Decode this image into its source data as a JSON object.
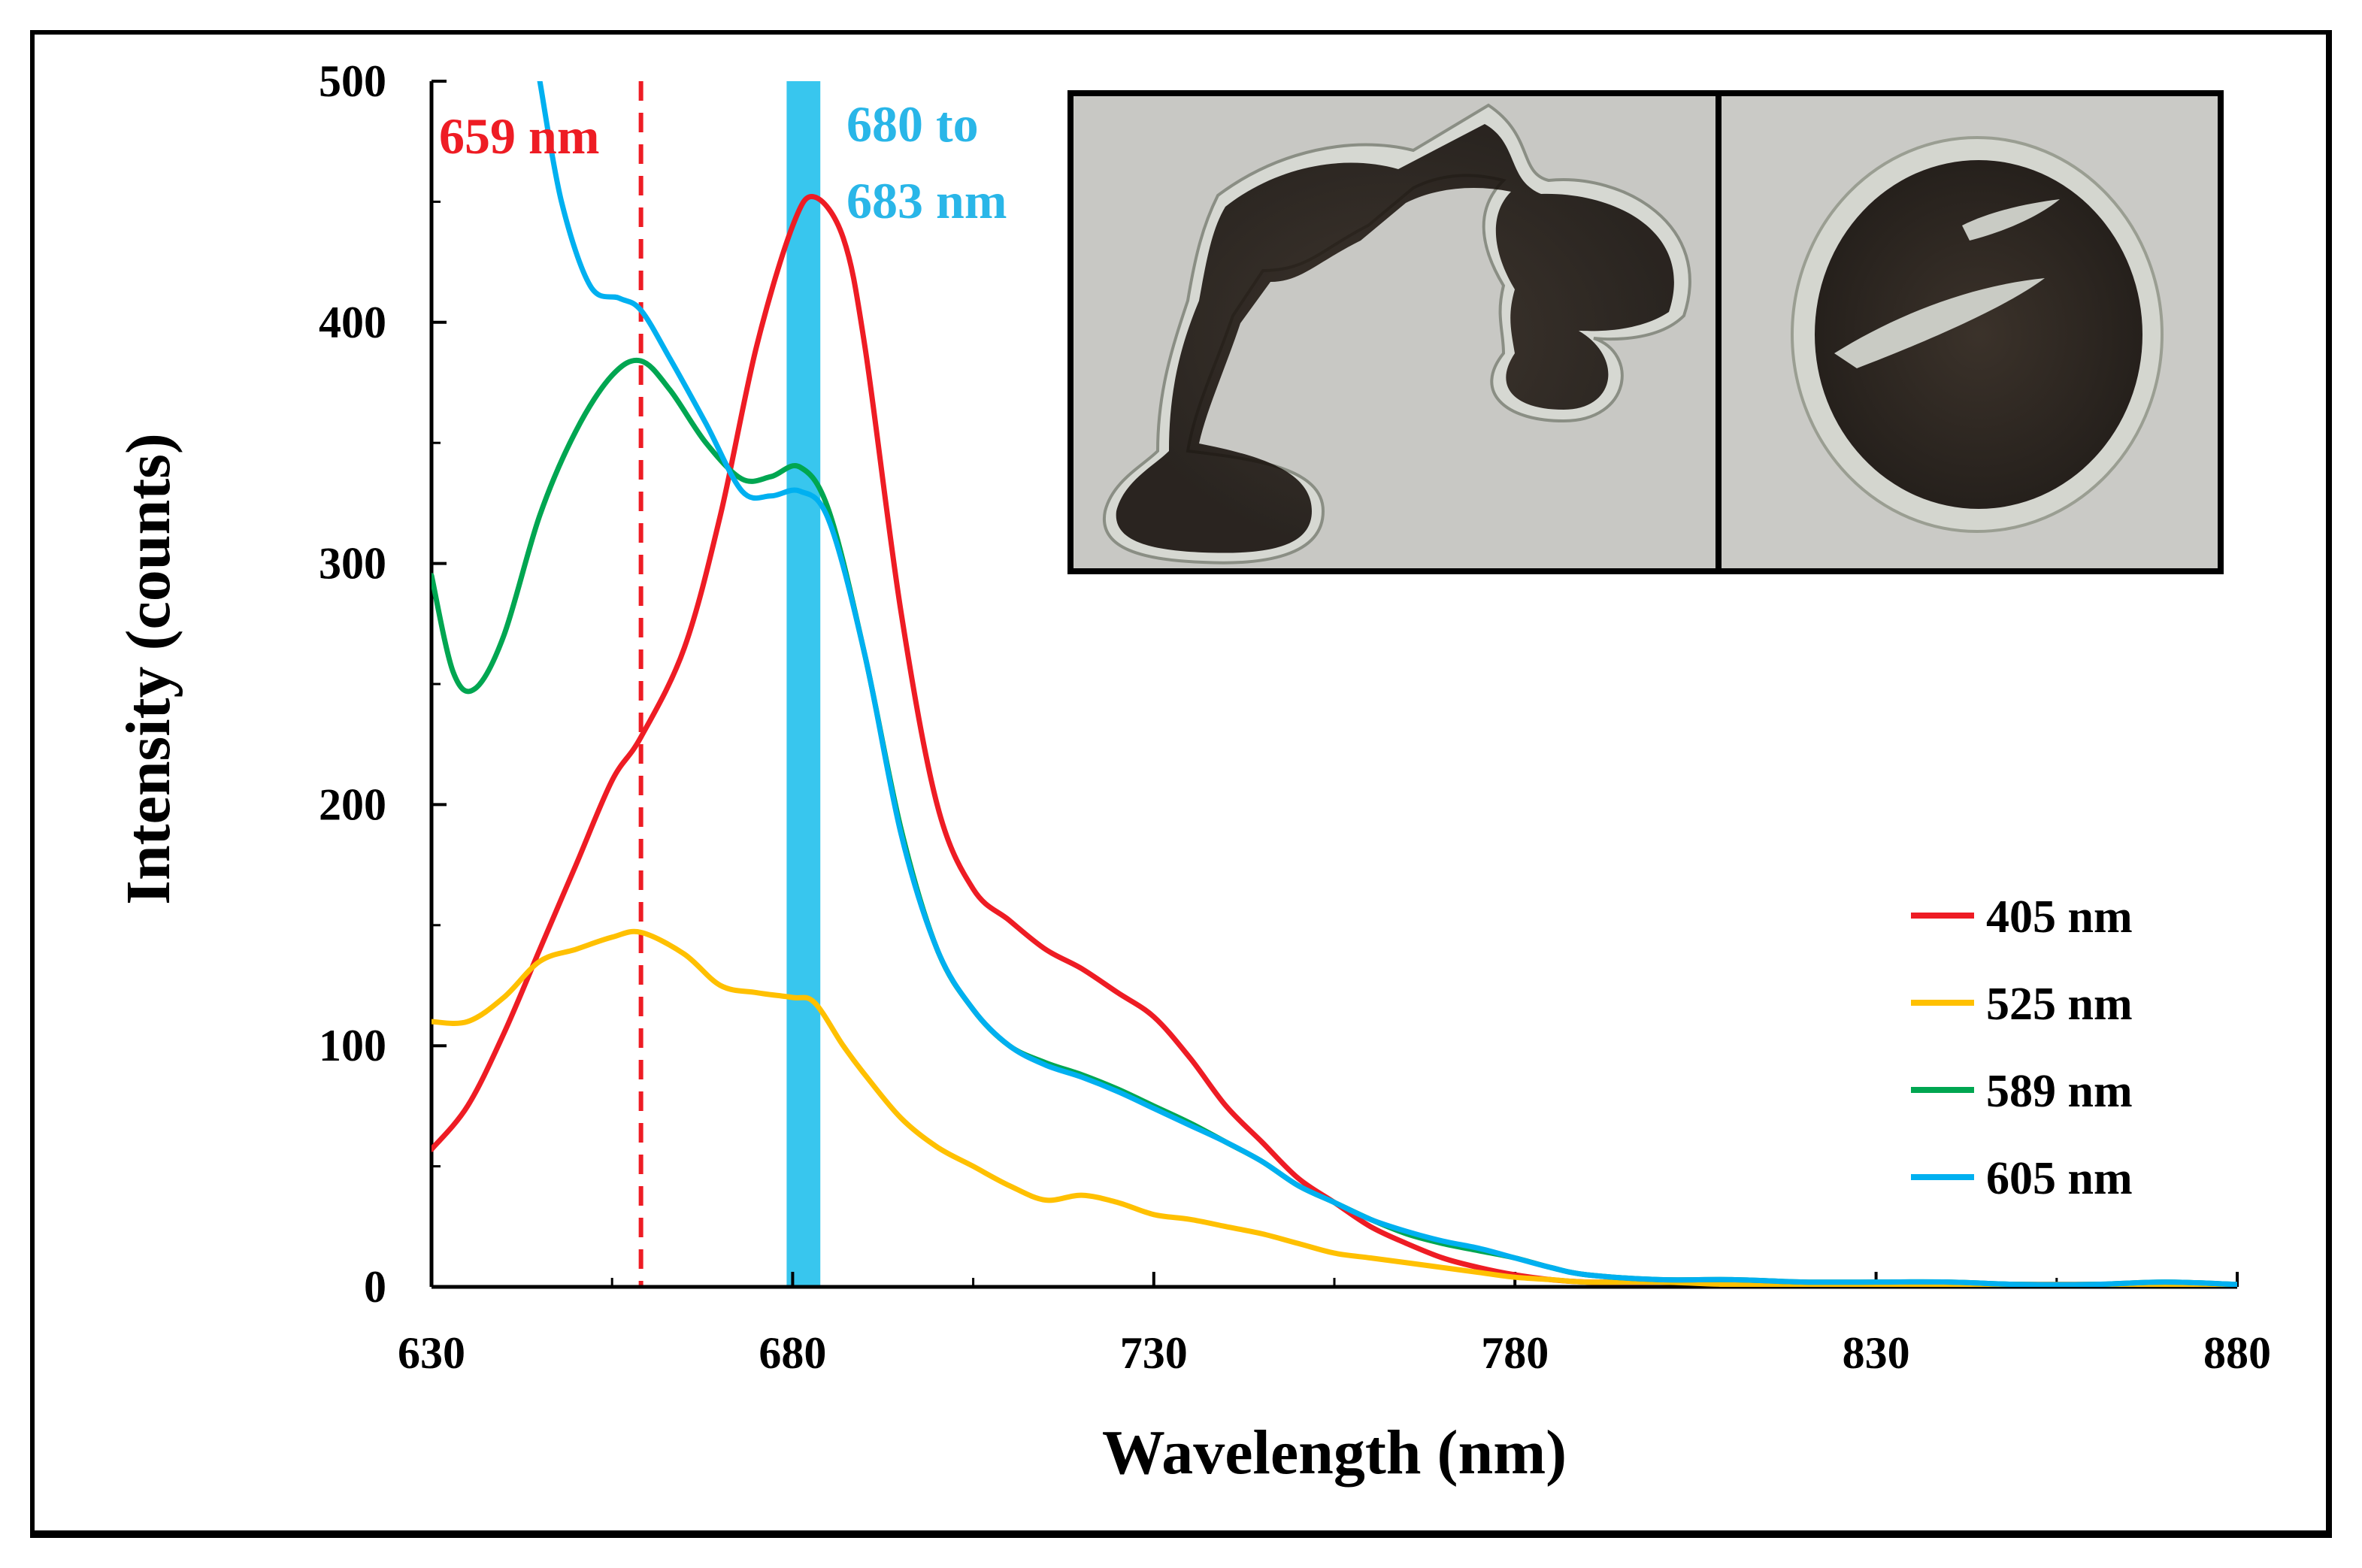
{
  "chart_data": {
    "type": "line",
    "title": "",
    "xlabel": "Wavelength (nm)",
    "ylabel": "Intensity (counts)",
    "xlim": [
      630,
      880
    ],
    "ylim": [
      0,
      500
    ],
    "xticks": [
      630,
      680,
      730,
      780,
      830,
      880
    ],
    "yticks": [
      0,
      100,
      200,
      300,
      400,
      500
    ],
    "grid": false,
    "legend_position": "right",
    "series": [
      {
        "name": "405 nm",
        "color": "#ee1c24",
        "x": [
          630,
          635,
          640,
          645,
          650,
          655,
          659,
          665,
          670,
          675,
          680,
          683,
          687,
          690,
          695,
          700,
          705,
          710,
          715,
          720,
          725,
          730,
          735,
          740,
          745,
          750,
          755,
          760,
          765,
          770,
          775,
          780,
          785,
          790,
          800,
          810,
          820,
          830,
          840,
          850,
          860,
          870,
          880
        ],
        "y": [
          57,
          75,
          105,
          140,
          175,
          210,
          228,
          265,
          320,
          390,
          440,
          452,
          435,
          390,
          280,
          200,
          165,
          152,
          140,
          132,
          122,
          112,
          95,
          75,
          60,
          45,
          35,
          25,
          18,
          12,
          8,
          5,
          3,
          2,
          2,
          2,
          1,
          1,
          1,
          1,
          1,
          1,
          1
        ]
      },
      {
        "name": "525 nm",
        "color": "#ffc000",
        "x": [
          630,
          635,
          640,
          645,
          650,
          655,
          659,
          665,
          670,
          675,
          680,
          683,
          687,
          690,
          695,
          700,
          705,
          710,
          715,
          720,
          725,
          730,
          735,
          740,
          745,
          750,
          755,
          760,
          765,
          770,
          775,
          780,
          785,
          790,
          800,
          810,
          820,
          830,
          840,
          850,
          860,
          870,
          880
        ],
        "y": [
          110,
          110,
          120,
          135,
          140,
          145,
          147,
          138,
          125,
          122,
          120,
          118,
          100,
          88,
          70,
          58,
          50,
          42,
          36,
          38,
          35,
          30,
          28,
          25,
          22,
          18,
          14,
          12,
          10,
          8,
          6,
          4,
          3,
          2,
          2,
          1,
          1,
          1,
          1,
          1,
          1,
          1,
          1
        ]
      },
      {
        "name": "589 nm",
        "color": "#00a651",
        "x": [
          630,
          633,
          636,
          640,
          645,
          650,
          655,
          659,
          663,
          668,
          673,
          677,
          681,
          685,
          690,
          695,
          700,
          705,
          710,
          715,
          720,
          725,
          730,
          735,
          740,
          745,
          750,
          755,
          760,
          765,
          770,
          775,
          780,
          785,
          790,
          800,
          810,
          820,
          830,
          840,
          850,
          860,
          870,
          880
        ],
        "y": [
          295,
          255,
          248,
          270,
          320,
          355,
          378,
          384,
          372,
          350,
          335,
          336,
          340,
          322,
          262,
          190,
          140,
          115,
          100,
          93,
          88,
          82,
          75,
          68,
          60,
          52,
          42,
          35,
          28,
          22,
          18,
          15,
          12,
          8,
          5,
          3,
          3,
          2,
          2,
          2,
          1,
          1,
          2,
          1
        ]
      },
      {
        "name": "605 nm",
        "color": "#00b0f0",
        "x": [
          645,
          648,
          652,
          656,
          659,
          663,
          668,
          673,
          677,
          681,
          685,
          690,
          695,
          700,
          705,
          710,
          715,
          720,
          725,
          730,
          735,
          740,
          745,
          750,
          755,
          760,
          765,
          770,
          775,
          780,
          785,
          790,
          800,
          810,
          820,
          830,
          840,
          850,
          860,
          870,
          880
        ],
        "y": [
          500,
          450,
          415,
          410,
          405,
          385,
          358,
          330,
          328,
          330,
          318,
          262,
          188,
          140,
          115,
          100,
          92,
          87,
          81,
          74,
          67,
          60,
          52,
          42,
          35,
          28,
          23,
          19,
          16,
          12,
          8,
          5,
          3,
          3,
          2,
          2,
          2,
          1,
          1,
          2,
          1
        ]
      }
    ],
    "annotations": [
      {
        "type": "dashed-vline",
        "x": 659,
        "color": "#ee1c24",
        "text": "659 nm"
      },
      {
        "type": "band",
        "x_range": [
          680,
          683
        ],
        "color": "#38c6ee",
        "text_line1": "680 to",
        "text_line2": "683 nm"
      }
    ],
    "inset": {
      "description_name": "micrograph-inset",
      "panels": 2
    }
  }
}
